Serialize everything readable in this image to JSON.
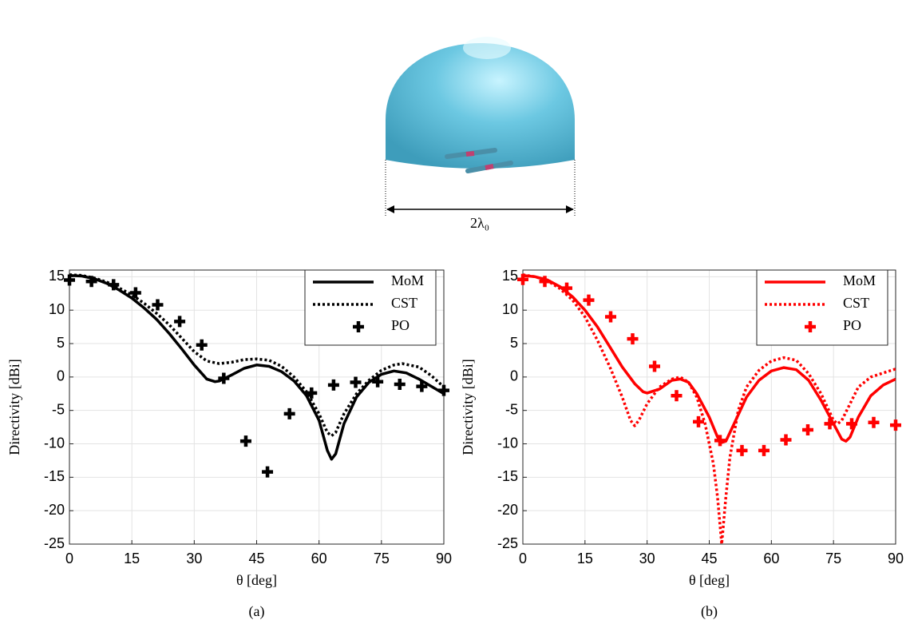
{
  "figure": {
    "dimension_label": "2λ₀"
  },
  "chart_data": [
    {
      "type": "line",
      "caption": "(a)",
      "x_label": "θ [deg]",
      "y_label": "Directivity [dBi]",
      "xlim": [
        0,
        90
      ],
      "xticks": [
        0,
        15,
        30,
        45,
        60,
        75,
        90
      ],
      "ylim": [
        -25,
        16
      ],
      "yticks": [
        -25,
        -20,
        -15,
        -10,
        -5,
        0,
        5,
        10,
        15
      ],
      "grid": true,
      "legend": "upper right",
      "series": [
        {
          "name": "MoM",
          "color": "#000000",
          "style": "solid",
          "x": [
            0,
            3,
            6,
            9,
            12,
            15,
            18,
            21,
            24,
            27,
            30,
            33,
            35,
            36,
            39,
            42,
            45,
            48,
            51,
            54,
            57,
            60,
            62,
            63,
            64,
            66,
            69,
            72,
            75,
            78,
            81,
            84,
            87,
            90
          ],
          "values": [
            15.2,
            15.1,
            14.7,
            14,
            13,
            11.8,
            10.3,
            8.6,
            6.5,
            4.2,
            1.8,
            -0.3,
            -0.7,
            -0.6,
            0.3,
            1.3,
            1.8,
            1.6,
            0.8,
            -0.6,
            -2.8,
            -6.5,
            -11,
            -12.3,
            -11.5,
            -7,
            -3,
            -0.8,
            0.4,
            0.9,
            0.6,
            -0.3,
            -1.4,
            -2.5
          ]
        },
        {
          "name": "CST",
          "color": "#000000",
          "style": "dotted",
          "x": [
            0,
            3,
            6,
            9,
            12,
            15,
            18,
            21,
            24,
            27,
            30,
            33,
            36,
            39,
            42,
            45,
            48,
            51,
            54,
            57,
            60,
            62,
            63,
            64,
            66,
            69,
            72,
            75,
            78,
            80,
            84,
            87,
            90
          ],
          "values": [
            15.3,
            15.2,
            14.8,
            14.2,
            13.3,
            12.3,
            11,
            9.5,
            7.8,
            5.8,
            3.8,
            2.4,
            2,
            2.2,
            2.6,
            2.7,
            2.5,
            1.6,
            0,
            -2.2,
            -5.5,
            -8.3,
            -8.8,
            -8.3,
            -5.5,
            -2.5,
            -0.5,
            1,
            1.8,
            2,
            1.5,
            0.2,
            -1.5
          ]
        },
        {
          "name": "PO",
          "color": "#000000",
          "style": "plus",
          "x": [
            0,
            5.3,
            10.6,
            15.9,
            21.2,
            26.5,
            31.8,
            37.1,
            42.4,
            47.6,
            52.9,
            58.2,
            63.5,
            68.8,
            74.1,
            79.4,
            84.7,
            90
          ],
          "values": [
            14.5,
            14.3,
            13.8,
            12.6,
            10.8,
            8.3,
            4.8,
            -0.2,
            -9.6,
            -14.2,
            -5.5,
            -2.4,
            -1.2,
            -0.8,
            -0.7,
            -1.1,
            -1.4,
            -2
          ]
        }
      ]
    },
    {
      "type": "line",
      "caption": "(b)",
      "x_label": "θ [deg]",
      "y_label": "Directivity [dBi]",
      "xlim": [
        0,
        90
      ],
      "xticks": [
        0,
        15,
        30,
        45,
        60,
        75,
        90
      ],
      "ylim": [
        -25,
        16
      ],
      "yticks": [
        -25,
        -20,
        -15,
        -10,
        -5,
        0,
        5,
        10,
        15
      ],
      "grid": true,
      "legend": "upper right",
      "series": [
        {
          "name": "MoM",
          "color": "#ff0000",
          "style": "solid",
          "x": [
            0,
            3,
            6,
            9,
            12,
            15,
            18,
            21,
            24,
            27,
            29,
            30,
            33,
            36,
            38,
            40,
            42,
            45,
            47,
            48,
            49,
            51,
            54,
            57,
            60,
            63,
            66,
            69,
            72,
            75,
            77,
            78,
            79,
            81,
            84,
            87,
            90
          ],
          "values": [
            15.2,
            15,
            14.5,
            13.5,
            12,
            10,
            7.5,
            4.5,
            1.5,
            -1,
            -2.2,
            -2.4,
            -1.8,
            -0.5,
            -0.3,
            -0.8,
            -2.5,
            -6,
            -9,
            -9.8,
            -9.6,
            -7,
            -3,
            -0.5,
            0.9,
            1.4,
            1.1,
            -0.5,
            -3.5,
            -7,
            -9.3,
            -9.6,
            -9,
            -6,
            -2.8,
            -1.2,
            -0.3
          ]
        },
        {
          "name": "CST",
          "color": "#ff0000",
          "style": "dotted",
          "x": [
            0,
            3,
            6,
            9,
            12,
            15,
            18,
            21,
            24,
            26,
            27,
            28,
            30,
            33,
            36,
            38,
            40,
            42,
            44,
            46,
            47,
            48,
            49,
            50,
            52,
            54,
            57,
            60,
            63,
            66,
            69,
            72,
            75,
            76,
            77,
            79,
            81,
            84,
            87,
            90
          ],
          "values": [
            15.3,
            15,
            14.4,
            13.2,
            11.5,
            9,
            5.5,
            1.5,
            -3,
            -6.5,
            -7.3,
            -6.5,
            -4,
            -1.5,
            -0.3,
            0,
            -0.8,
            -3,
            -7,
            -13,
            -18,
            -25,
            -18,
            -12,
            -5,
            -1.5,
            1,
            2.4,
            2.9,
            2.5,
            0.5,
            -2.5,
            -6.5,
            -7,
            -6.5,
            -4,
            -1.5,
            0,
            0.6,
            1.2
          ]
        },
        {
          "name": "PO",
          "color": "#ff0000",
          "style": "plus",
          "x": [
            0,
            5.3,
            10.6,
            15.9,
            21.2,
            26.5,
            31.8,
            37.1,
            42.4,
            47.6,
            52.9,
            58.2,
            63.5,
            68.8,
            74.1,
            79.4,
            84.7,
            90
          ],
          "values": [
            14.6,
            14.3,
            13.3,
            11.5,
            9,
            5.7,
            1.6,
            -2.8,
            -6.7,
            -9.5,
            -11,
            -11,
            -9.4,
            -7.9,
            -7,
            -7,
            -6.8,
            -7.2
          ]
        }
      ]
    }
  ]
}
